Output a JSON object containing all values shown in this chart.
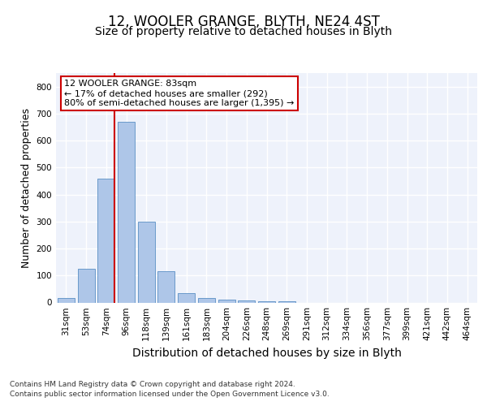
{
  "title1": "12, WOOLER GRANGE, BLYTH, NE24 4ST",
  "title2": "Size of property relative to detached houses in Blyth",
  "xlabel": "Distribution of detached houses by size in Blyth",
  "ylabel": "Number of detached properties",
  "categories": [
    "31sqm",
    "53sqm",
    "74sqm",
    "96sqm",
    "118sqm",
    "139sqm",
    "161sqm",
    "183sqm",
    "204sqm",
    "226sqm",
    "248sqm",
    "269sqm",
    "291sqm",
    "312sqm",
    "334sqm",
    "356sqm",
    "377sqm",
    "399sqm",
    "421sqm",
    "442sqm",
    "464sqm"
  ],
  "values": [
    18,
    125,
    460,
    670,
    300,
    115,
    35,
    18,
    12,
    9,
    6,
    4,
    0,
    0,
    0,
    0,
    0,
    0,
    0,
    0,
    0
  ],
  "bar_color": "#aec6e8",
  "bar_edge_color": "#5a8fc4",
  "property_line_color": "#cc0000",
  "annotation_text": "12 WOOLER GRANGE: 83sqm\n← 17% of detached houses are smaller (292)\n80% of semi-detached houses are larger (1,395) →",
  "annotation_box_color": "#ffffff",
  "annotation_box_edge": "#cc0000",
  "ylim": [
    0,
    850
  ],
  "yticks": [
    0,
    100,
    200,
    300,
    400,
    500,
    600,
    700,
    800
  ],
  "footer_line1": "Contains HM Land Registry data © Crown copyright and database right 2024.",
  "footer_line2": "Contains public sector information licensed under the Open Government Licence v3.0.",
  "background_color": "#eef2fb",
  "grid_color": "#ffffff",
  "title1_fontsize": 12,
  "title2_fontsize": 10,
  "axis_label_fontsize": 9,
  "xlabel_fontsize": 10,
  "tick_fontsize": 7.5,
  "footer_fontsize": 6.5,
  "prop_line_bar_index": 2,
  "bar_width": 0.85
}
